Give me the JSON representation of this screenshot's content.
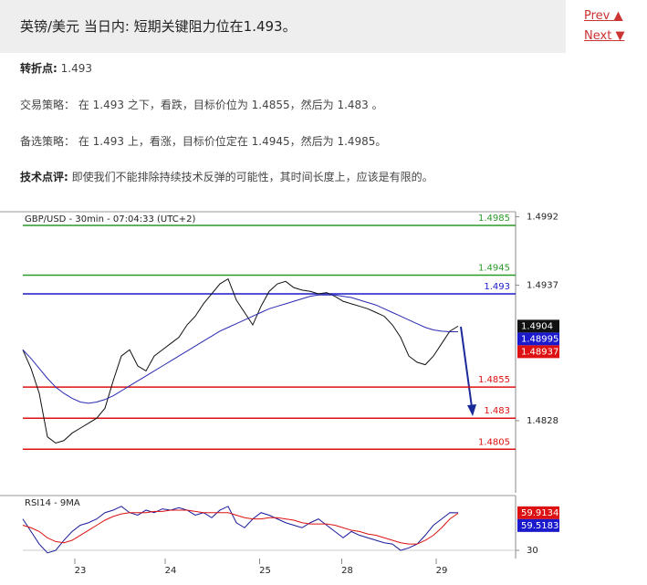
{
  "header": {
    "title": "英镑/美元 当日内: 短期关键阻力位在1.493。",
    "prev": "Prev",
    "next": "Next"
  },
  "paragraphs": [
    {
      "label": "转折点:",
      "text": "1.493",
      "bold": true
    },
    {
      "label": "交易策略：",
      "text": "在 1.493 之下，看跌，目标价位为 1.4855，然后为 1.483 。",
      "bold": false
    },
    {
      "label": "备选策略：",
      "text": "在 1.493 上，看涨，目标价位定在 1.4945，然后为 1.4985。",
      "bold": false
    },
    {
      "label": "技术点评:",
      "text": "即使我们不能排除持续技术反弹的可能性，其时间长度上，应该是有限的。",
      "bold": true
    }
  ],
  "chart_data": [
    {
      "type": "line",
      "title": "GBP/USD - 30min - 07:04:33 (UTC+2)",
      "xlim": [
        0,
        60
      ],
      "ylim": [
        1.477,
        1.4996
      ],
      "yticks": [
        1.4992,
        1.4937,
        1.4828
      ],
      "series": [
        {
          "color": "#111111",
          "values": [
            1.4885,
            1.487,
            1.485,
            1.4815,
            1.481,
            1.4812,
            1.4818,
            1.4822,
            1.4826,
            1.483,
            1.4838,
            1.486,
            1.488,
            1.4885,
            1.4872,
            1.4868,
            1.488,
            1.4885,
            1.489,
            1.4895,
            1.4905,
            1.4912,
            1.4922,
            1.493,
            1.4938,
            1.4942,
            1.4925,
            1.4915,
            1.4905,
            1.492,
            1.4932,
            1.4938,
            1.494,
            1.4935,
            1.4933,
            1.4932,
            1.493,
            1.4931,
            1.4928,
            1.4924,
            1.4922,
            1.492,
            1.4918,
            1.4915,
            1.4912,
            1.4905,
            1.4895,
            1.488,
            1.4875,
            1.4873,
            1.488,
            1.489,
            1.49,
            1.4904
          ]
        },
        {
          "color": "#2a2ab0",
          "values": [
            1.4885,
            1.4878,
            1.487,
            1.4862,
            1.4855,
            1.485,
            1.4846,
            1.4843,
            1.4842,
            1.4843,
            1.4845,
            1.4848,
            1.4852,
            1.4856,
            1.486,
            1.4864,
            1.4868,
            1.4872,
            1.4876,
            1.488,
            1.4884,
            1.4888,
            1.4892,
            1.4896,
            1.49,
            1.4903,
            1.4906,
            1.4909,
            1.4912,
            1.4915,
            1.4918,
            1.492,
            1.4922,
            1.4924,
            1.4926,
            1.4928,
            1.4929,
            1.4929,
            1.4929,
            1.4928,
            1.4927,
            1.4925,
            1.4923,
            1.4921,
            1.4918,
            1.4915,
            1.4912,
            1.4909,
            1.4906,
            1.4903,
            1.4901,
            1.49,
            1.48995,
            1.48995
          ]
        }
      ],
      "levels": [
        {
          "value": 1.4985,
          "color": "#2a9a2a"
        },
        {
          "value": 1.4945,
          "color": "#2a9a2a"
        },
        {
          "value": 1.493,
          "color": "#1a1acc"
        },
        {
          "value": 1.4855,
          "color": "#dd1111"
        },
        {
          "value": 1.483,
          "color": "#dd1111"
        },
        {
          "value": 1.4805,
          "color": "#dd1111"
        }
      ],
      "tags": [
        {
          "value": 1.4904,
          "color": "#111111"
        },
        {
          "value": 1.48995,
          "color": "#1a1acc"
        },
        {
          "value": 1.48937,
          "color": "#dd1111"
        }
      ]
    },
    {
      "type": "line",
      "title": "RSI14 - 9MA",
      "xlim": [
        0,
        60
      ],
      "ylim": [
        23.5,
        73.6
      ],
      "yticks": [
        30
      ],
      "xticks": [
        {
          "value": 7,
          "label": "23"
        },
        {
          "value": 18,
          "label": "24"
        },
        {
          "value": 29.5,
          "label": "25"
        },
        {
          "value": 39.5,
          "label": "28"
        },
        {
          "value": 51,
          "label": "29"
        }
      ],
      "series": [
        {
          "color": "#1a1a99",
          "values": [
            55,
            45,
            35,
            28,
            30,
            38,
            45,
            50,
            52,
            55,
            60,
            62,
            65,
            60,
            58,
            62,
            60,
            63,
            62,
            64,
            62,
            58,
            60,
            56,
            62,
            65,
            52,
            48,
            55,
            60,
            58,
            55,
            52,
            50,
            48,
            52,
            55,
            50,
            45,
            40,
            45,
            42,
            40,
            38,
            36,
            35,
            30,
            32,
            35,
            42,
            50,
            55,
            60,
            59.9134
          ]
        },
        {
          "color": "#dd1111",
          "values": [
            50,
            48,
            45,
            40,
            37,
            36,
            38,
            42,
            46,
            50,
            54,
            57,
            59,
            60,
            60,
            60,
            61,
            61,
            62,
            62,
            62,
            61,
            60,
            60,
            60,
            60,
            58,
            56,
            55,
            55,
            56,
            56,
            55,
            54,
            52,
            51,
            51,
            51,
            50,
            48,
            46,
            45,
            43,
            42,
            40,
            38,
            36,
            35,
            35,
            38,
            42,
            48,
            55,
            59.5183
          ]
        }
      ],
      "tags": [
        {
          "value": 59.9134,
          "color": "#dd1111"
        },
        {
          "value": 59.5183,
          "color": "#1a1acc"
        }
      ]
    }
  ]
}
